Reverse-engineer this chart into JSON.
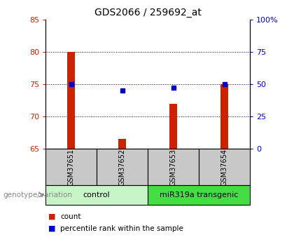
{
  "title": "GDS2066 / 259692_at",
  "samples": [
    "GSM37651",
    "GSM37652",
    "GSM37653",
    "GSM37654"
  ],
  "red_values": [
    80.0,
    66.5,
    72.0,
    75.0
  ],
  "blue_values": [
    75.0,
    74.0,
    74.5,
    75.0
  ],
  "ylim_left": [
    65,
    85
  ],
  "ylim_right": [
    0,
    100
  ],
  "yticks_left": [
    65,
    70,
    75,
    80,
    85
  ],
  "yticks_right": [
    0,
    25,
    50,
    75,
    100
  ],
  "ytick_labels_right": [
    "0",
    "25",
    "50",
    "75",
    "100%"
  ],
  "group_labels": [
    "control",
    "miR319a transgenic"
  ],
  "group_ranges": [
    [
      0,
      1
    ],
    [
      2,
      3
    ]
  ],
  "group_colors": [
    "#c8f5c8",
    "#44dd44"
  ],
  "legend_items": [
    "count",
    "percentile rank within the sample"
  ],
  "legend_colors": [
    "#cc2200",
    "#0000cc"
  ],
  "bar_color": "#cc2200",
  "dot_color": "#0000cc",
  "gray_box_color": "#c8c8c8",
  "title_color": "#000000",
  "grid_yticks": [
    70,
    75,
    80
  ],
  "bar_width": 0.15
}
